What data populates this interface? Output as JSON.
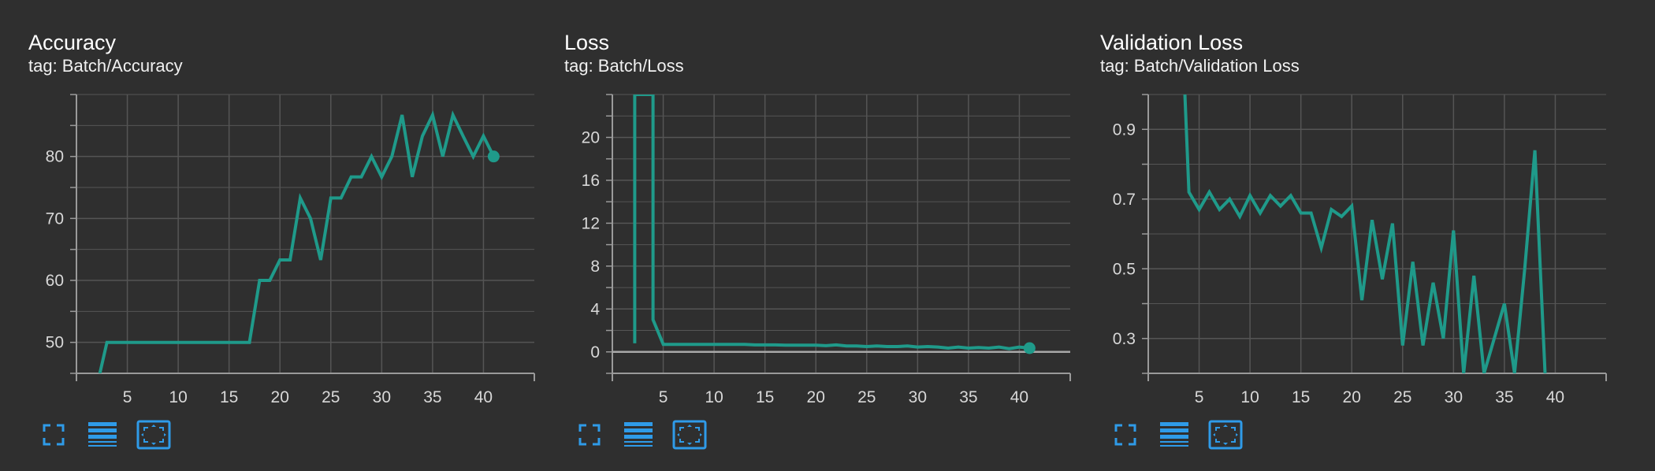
{
  "theme": {
    "background": "#2f2f2f",
    "line_color": "#1f9a8a",
    "icon_color": "#2f9be8",
    "grid_color": "#555555"
  },
  "cards": [
    {
      "title": "Accuracy",
      "tag": "tag: Batch/Accuracy",
      "toolbar": [
        "fullscreen-icon",
        "list-icon",
        "fit-domain-icon"
      ]
    },
    {
      "title": "Loss",
      "tag": "tag: Batch/Loss",
      "toolbar": [
        "fullscreen-icon",
        "list-icon",
        "fit-domain-icon"
      ]
    },
    {
      "title": "Validation Loss",
      "tag": "tag: Batch/Validation Loss",
      "toolbar": [
        "fullscreen-icon",
        "list-icon",
        "fit-domain-icon"
      ]
    }
  ],
  "chart_data": [
    {
      "type": "line",
      "title": "Accuracy",
      "xlabel": "",
      "ylabel": "",
      "xlim": [
        0,
        45
      ],
      "ylim": [
        45,
        90
      ],
      "xticks": [
        5,
        10,
        15,
        20,
        25,
        30,
        35,
        40
      ],
      "yticks": [
        50,
        60,
        70,
        80
      ],
      "grid": true,
      "x": [
        2.3,
        3,
        4,
        5,
        6,
        7,
        8,
        9,
        10,
        11,
        12,
        13,
        14,
        15,
        16,
        17,
        18,
        19,
        20,
        21,
        22,
        23,
        24,
        25,
        26,
        27,
        28,
        29,
        30,
        31,
        32,
        33,
        34,
        35,
        36,
        37,
        38,
        39,
        40,
        41
      ],
      "y": [
        45,
        50,
        50,
        50,
        50,
        50,
        50,
        50,
        50,
        50,
        50,
        50,
        50,
        50,
        50,
        50,
        60,
        60,
        63.3,
        63.3,
        73.3,
        70,
        63.3,
        73.3,
        73.3,
        76.7,
        76.7,
        80,
        76.7,
        80,
        86.7,
        76.7,
        83.3,
        86.7,
        80,
        86.7,
        83.3,
        80,
        83.3,
        80
      ],
      "last_point": [
        41,
        80
      ]
    },
    {
      "type": "line",
      "title": "Loss",
      "xlabel": "",
      "ylabel": "",
      "xlim": [
        0,
        45
      ],
      "ylim": [
        -2,
        24
      ],
      "xticks": [
        5,
        10,
        15,
        20,
        25,
        30,
        35,
        40
      ],
      "yticks": [
        0,
        4,
        8,
        12,
        16,
        20
      ],
      "grid": true,
      "x": [
        2.2,
        2.2,
        4,
        4,
        5,
        6,
        7,
        8,
        9,
        10,
        11,
        12,
        13,
        14,
        15,
        16,
        17,
        18,
        19,
        20,
        21,
        22,
        23,
        24,
        25,
        26,
        27,
        28,
        29,
        30,
        31,
        32,
        33,
        34,
        35,
        36,
        37,
        38,
        39,
        40,
        41
      ],
      "y": [
        0.8,
        24,
        24,
        3,
        0.7,
        0.7,
        0.7,
        0.7,
        0.7,
        0.7,
        0.7,
        0.7,
        0.7,
        0.65,
        0.65,
        0.65,
        0.62,
        0.62,
        0.62,
        0.62,
        0.58,
        0.65,
        0.55,
        0.55,
        0.5,
        0.55,
        0.5,
        0.5,
        0.55,
        0.45,
        0.5,
        0.45,
        0.35,
        0.45,
        0.35,
        0.4,
        0.35,
        0.45,
        0.3,
        0.45,
        0.35
      ],
      "last_point": [
        41,
        0.35
      ]
    },
    {
      "type": "line",
      "title": "Validation Loss",
      "xlabel": "",
      "ylabel": "",
      "xlim": [
        0,
        45
      ],
      "ylim": [
        0.2,
        1.0
      ],
      "xticks": [
        5,
        10,
        15,
        20,
        25,
        30,
        35,
        40
      ],
      "yticks": [
        0.3,
        0.5,
        0.7,
        0.9
      ],
      "grid": true,
      "x": [
        3.6,
        4,
        5,
        6,
        7,
        8,
        9,
        10,
        11,
        12,
        13,
        14,
        15,
        16,
        17,
        18,
        19,
        20,
        21,
        22,
        23,
        24,
        25,
        26,
        27,
        28,
        29,
        30,
        31,
        32,
        33,
        34,
        35,
        36,
        37,
        38,
        39
      ],
      "y": [
        1.0,
        0.72,
        0.67,
        0.72,
        0.67,
        0.7,
        0.65,
        0.71,
        0.66,
        0.71,
        0.68,
        0.71,
        0.66,
        0.66,
        0.56,
        0.67,
        0.65,
        0.68,
        0.41,
        0.64,
        0.47,
        0.63,
        0.28,
        0.52,
        0.28,
        0.46,
        0.3,
        0.61,
        0.2,
        0.48,
        0.2,
        0.3,
        0.4,
        0.2,
        0.5,
        0.84,
        0.2
      ],
      "last_point": null
    }
  ]
}
